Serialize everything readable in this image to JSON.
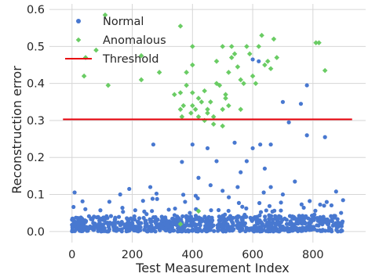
{
  "chart_data": {
    "type": "scatter",
    "xlabel": "Test Measurement Index",
    "ylabel": "Reconstruction error",
    "xlim": [
      -75,
      975
    ],
    "ylim": [
      -0.03,
      0.615
    ],
    "xticks": [
      0,
      200,
      400,
      600,
      800
    ],
    "yticks": [
      0.0,
      0.1,
      0.2,
      0.3,
      0.4,
      0.5,
      0.6
    ],
    "xtick_labels": [
      "0",
      "200",
      "400",
      "600",
      "800"
    ],
    "ytick_labels": [
      "0.0",
      "0.1",
      "0.2",
      "0.3",
      "0.4",
      "0.5",
      "0.6"
    ],
    "grid": true,
    "legend_position": "top-left",
    "legend": [
      "Normal",
      "Anomalous",
      "Threshold"
    ],
    "colors": {
      "normal": "#4878d0",
      "anomalous": "#6acc64",
      "threshold": "#e8000b"
    },
    "threshold": {
      "name": "Threshold",
      "y": 0.303,
      "x": [
        -30,
        930
      ]
    },
    "series": [
      {
        "name": "Normal",
        "marker": "circle",
        "count": 850,
        "x_range": [
          0,
          900
        ],
        "baseline_mean": 0.022,
        "sample_points": [
          [
            270,
            0.235
          ],
          [
            365,
            0.188
          ],
          [
            400,
            0.235
          ],
          [
            450,
            0.225
          ],
          [
            480,
            0.19
          ],
          [
            540,
            0.24
          ],
          [
            560,
            0.16
          ],
          [
            580,
            0.19
          ],
          [
            600,
            0.225
          ],
          [
            625,
            0.235
          ],
          [
            640,
            0.17
          ],
          [
            660,
            0.235
          ],
          [
            700,
            0.35
          ],
          [
            720,
            0.295
          ],
          [
            740,
            0.135
          ],
          [
            760,
            0.345
          ],
          [
            780,
            0.395
          ],
          [
            780,
            0.26
          ],
          [
            840,
            0.255
          ],
          [
            420,
            0.145
          ],
          [
            460,
            0.125
          ],
          [
            500,
            0.11
          ],
          [
            550,
            0.12
          ],
          [
            660,
            0.12
          ],
          [
            700,
            0.1
          ],
          [
            190,
            0.115
          ],
          [
            260,
            0.12
          ],
          [
            160,
            0.1
          ],
          [
            600,
            0.465
          ],
          [
            620,
            0.46
          ]
        ]
      },
      {
        "name": "Anomalous",
        "marker": "diamond",
        "points": [
          [
            110,
            0.585
          ],
          [
            45,
            0.47
          ],
          [
            40,
            0.42
          ],
          [
            80,
            0.49
          ],
          [
            120,
            0.395
          ],
          [
            230,
            0.475
          ],
          [
            230,
            0.41
          ],
          [
            290,
            0.43
          ],
          [
            360,
            0.555
          ],
          [
            340,
            0.37
          ],
          [
            360,
            0.375
          ],
          [
            370,
            0.34
          ],
          [
            380,
            0.395
          ],
          [
            380,
            0.43
          ],
          [
            400,
            0.5
          ],
          [
            400,
            0.45
          ],
          [
            400,
            0.375
          ],
          [
            400,
            0.34
          ],
          [
            410,
            0.33
          ],
          [
            420,
            0.36
          ],
          [
            420,
            0.31
          ],
          [
            430,
            0.35
          ],
          [
            440,
            0.38
          ],
          [
            450,
            0.33
          ],
          [
            450,
            0.32
          ],
          [
            460,
            0.35
          ],
          [
            470,
            0.31
          ],
          [
            480,
            0.46
          ],
          [
            480,
            0.4
          ],
          [
            490,
            0.395
          ],
          [
            500,
            0.5
          ],
          [
            510,
            0.37
          ],
          [
            520,
            0.43
          ],
          [
            520,
            0.34
          ],
          [
            530,
            0.5
          ],
          [
            530,
            0.47
          ],
          [
            540,
            0.48
          ],
          [
            550,
            0.445
          ],
          [
            560,
            0.41
          ],
          [
            560,
            0.33
          ],
          [
            570,
            0.4
          ],
          [
            580,
            0.5
          ],
          [
            590,
            0.48
          ],
          [
            600,
            0.42
          ],
          [
            610,
            0.4
          ],
          [
            620,
            0.5
          ],
          [
            630,
            0.53
          ],
          [
            640,
            0.45
          ],
          [
            650,
            0.46
          ],
          [
            660,
            0.44
          ],
          [
            670,
            0.52
          ],
          [
            680,
            0.47
          ],
          [
            810,
            0.51
          ],
          [
            820,
            0.51
          ],
          [
            840,
            0.435
          ],
          [
            360,
            0.33
          ],
          [
            365,
            0.31
          ],
          [
            420,
            0.055
          ],
          [
            360,
            0.02
          ],
          [
            500,
            0.285
          ],
          [
            500,
            0.33
          ],
          [
            510,
            0.36
          ],
          [
            470,
            0.29
          ],
          [
            440,
            0.3
          ],
          [
            395,
            0.32
          ]
        ]
      }
    ]
  }
}
